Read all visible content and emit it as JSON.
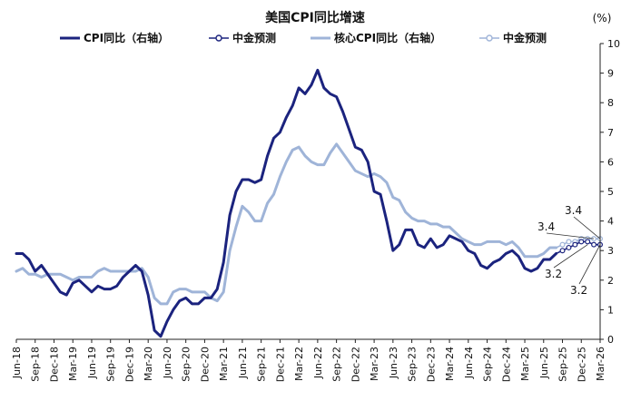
{
  "chart_data": {
    "type": "line",
    "title": "美国CPI同比增速",
    "unit": "(%)",
    "ylim": [
      0,
      10
    ],
    "yticks": [
      0,
      1,
      2,
      3,
      4,
      5,
      6,
      7,
      8,
      9,
      10
    ],
    "y_axis_side": "right",
    "grid": false,
    "legend_position": "top",
    "x_labels": [
      "Jun-18",
      "Sep-18",
      "Dec-18",
      "Mar-19",
      "Jun-19",
      "Sep-19",
      "Dec-19",
      "Mar-20",
      "Jun-20",
      "Sep-20",
      "Dec-20",
      "Mar-21",
      "Jun-21",
      "Sep-21",
      "Dec-21",
      "Mar-22",
      "Jun-22",
      "Sep-22",
      "Dec-22",
      "Mar-23",
      "Jun-23",
      "Sep-23",
      "Dec-23",
      "Mar-24",
      "Jun-24",
      "Sep-24",
      "Dec-24",
      "Mar-25",
      "Jun-25",
      "Sep-25",
      "Dec-25",
      "Mar-26"
    ],
    "x_start": "Jun-18",
    "series": [
      {
        "name": "CPI同比（右轴）",
        "color": "#1b237e",
        "values": [
          2.9,
          2.9,
          2.7,
          2.3,
          2.5,
          2.2,
          1.9,
          1.6,
          1.5,
          1.9,
          2.0,
          1.8,
          1.6,
          1.8,
          1.7,
          1.7,
          1.8,
          2.1,
          2.3,
          2.5,
          2.3,
          1.5,
          0.3,
          0.1,
          0.6,
          1.0,
          1.3,
          1.4,
          1.2,
          1.2,
          1.4,
          1.4,
          1.7,
          2.6,
          4.2,
          5.0,
          5.4,
          5.4,
          5.3,
          5.4,
          6.2,
          6.8,
          7.0,
          7.5,
          7.9,
          8.5,
          8.3,
          8.6,
          9.1,
          8.5,
          8.3,
          8.2,
          7.7,
          7.1,
          6.5,
          6.4,
          6.0,
          5.0,
          4.9,
          4.0,
          3.0,
          3.2,
          3.7,
          3.7,
          3.2,
          3.1,
          3.4,
          3.1,
          3.2,
          3.5,
          3.4,
          3.3,
          3.0,
          2.9,
          2.5,
          2.4,
          2.6,
          2.7,
          2.9,
          3.0,
          2.8,
          2.4,
          2.3,
          2.4,
          2.7,
          2.7,
          2.9
        ]
      },
      {
        "name": "中金预测",
        "color": "#1b237e",
        "marker": "circle",
        "start_index": 86,
        "values": [
          2.9,
          3.0,
          3.1,
          3.2,
          3.3,
          3.3,
          3.2,
          3.2
        ]
      },
      {
        "name": "核心CPI同比（右轴）",
        "color": "#9fb4d8",
        "values": [
          2.3,
          2.4,
          2.2,
          2.2,
          2.1,
          2.2,
          2.2,
          2.2,
          2.1,
          2.0,
          2.1,
          2.1,
          2.1,
          2.3,
          2.4,
          2.3,
          2.3,
          2.3,
          2.3,
          2.3,
          2.4,
          2.1,
          1.4,
          1.2,
          1.2,
          1.6,
          1.7,
          1.7,
          1.6,
          1.6,
          1.6,
          1.4,
          1.3,
          1.6,
          3.0,
          3.8,
          4.5,
          4.3,
          4.0,
          4.0,
          4.6,
          4.9,
          5.5,
          6.0,
          6.4,
          6.5,
          6.2,
          6.0,
          5.9,
          5.9,
          6.3,
          6.6,
          6.3,
          6.0,
          5.7,
          5.6,
          5.5,
          5.6,
          5.5,
          5.3,
          4.8,
          4.7,
          4.3,
          4.1,
          4.0,
          4.0,
          3.9,
          3.9,
          3.8,
          3.8,
          3.6,
          3.4,
          3.3,
          3.2,
          3.2,
          3.3,
          3.3,
          3.3,
          3.2,
          3.3,
          3.1,
          2.8,
          2.8,
          2.8,
          2.9,
          3.1,
          3.1
        ]
      },
      {
        "name": "中金预测",
        "color": "#9fb4d8",
        "marker": "circle",
        "start_index": 86,
        "values": [
          3.1,
          3.2,
          3.3,
          3.3,
          3.4,
          3.4,
          3.4,
          3.4
        ]
      }
    ],
    "annotations": [
      {
        "text": "3.4",
        "x_index": 93,
        "value": 3.4,
        "label_pos": [
          622,
          236
        ]
      },
      {
        "text": "3.4",
        "x_index": 92,
        "value": 3.4,
        "label_pos": [
          592,
          254
        ]
      },
      {
        "text": "3.2",
        "x_index": 91,
        "value": 3.2,
        "label_pos": [
          600,
          306
        ]
      },
      {
        "text": "3.2",
        "x_index": 93,
        "value": 3.2,
        "label_pos": [
          628,
          324
        ]
      }
    ]
  }
}
